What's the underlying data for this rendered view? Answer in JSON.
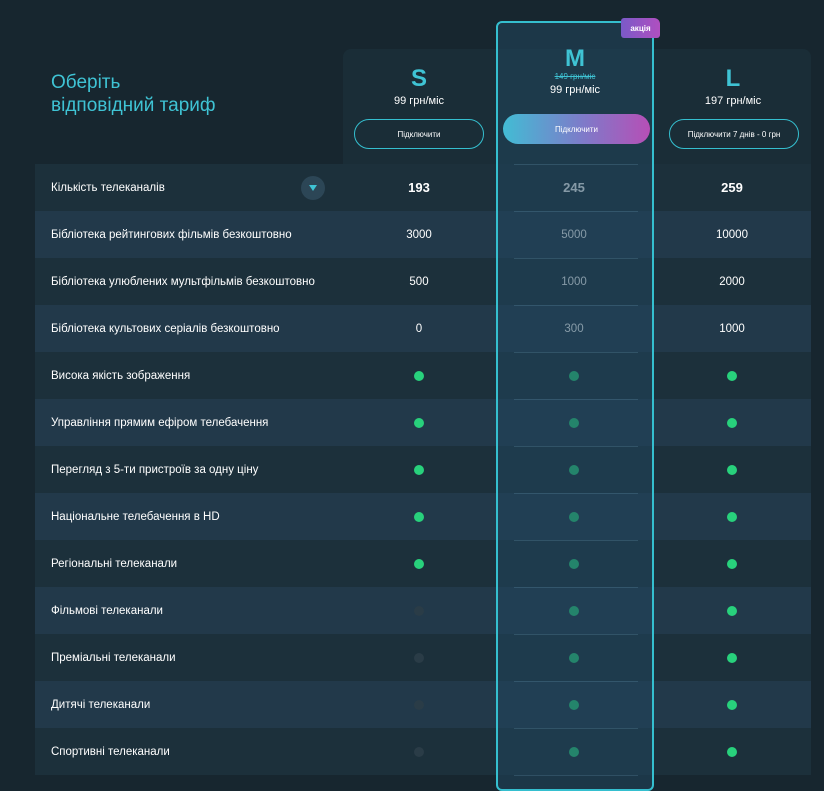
{
  "title": {
    "line1": "Оберіть",
    "line2": "відповідний тариф"
  },
  "plans": [
    {
      "letter": "S",
      "price": "99 грн/міс",
      "button": "Підключити"
    },
    {
      "letter": "M",
      "old_price": "149 грн/міс",
      "price": "99 грн/міс",
      "button": "Підключити",
      "badge": "акція"
    },
    {
      "letter": "L",
      "price": "197 грн/міс",
      "button": "Підключити 7 днів - 0 грн"
    }
  ],
  "rows": [
    {
      "label": "Кількість телеканалів",
      "s": "193",
      "m": "245",
      "l": "259"
    },
    {
      "label": "Бібліотека рейтингових фільмів безкоштовно",
      "s": "3000",
      "m": "5000",
      "l": "10000"
    },
    {
      "label": "Бібліотека улюблених мультфільмів безкоштовно",
      "s": "500",
      "m": "1000",
      "l": "2000"
    },
    {
      "label": "Бібліотека культових серіалів безкоштовно",
      "s": "0",
      "m": "300",
      "l": "1000"
    },
    {
      "label": "Висока якість зображення",
      "s": true,
      "m": true,
      "l": true
    },
    {
      "label": "Управління прямим ефіром телебачення",
      "s": true,
      "m": true,
      "l": true
    },
    {
      "label": "Перегляд з 5-ти пристроїв за одну ціну",
      "s": true,
      "m": true,
      "l": true
    },
    {
      "label": "Національне телебачення в HD",
      "s": true,
      "m": true,
      "l": true
    },
    {
      "label": "Регіональні телеканали",
      "s": true,
      "m": true,
      "l": true
    },
    {
      "label": "Фільмові телеканали",
      "s": false,
      "m": true,
      "l": true
    },
    {
      "label": "Преміальні телеканали",
      "s": false,
      "m": true,
      "l": true
    },
    {
      "label": "Дитячі телеканали",
      "s": false,
      "m": true,
      "l": true
    },
    {
      "label": "Спортивні телеканали",
      "s": false,
      "m": true,
      "l": true
    }
  ],
  "colors": {
    "accent": "#3fc3d4",
    "included": "#28d17c",
    "excluded": "#2a3c47",
    "badge": "#a653c2"
  },
  "icons": {
    "expand": "chevron-down-icon"
  }
}
